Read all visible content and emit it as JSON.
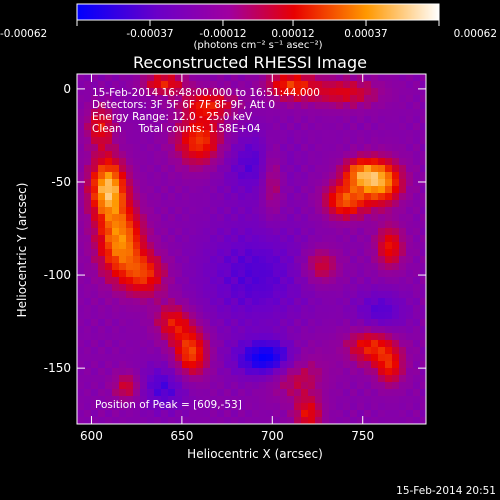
{
  "title": "Reconstructed RHESSI Image",
  "timestamp": "15-Feb-2014 20:51",
  "colorbar": {
    "ticks": [
      "-0.00062",
      "-0.00037",
      "-0.00012",
      "0.00012",
      "0.00037",
      "0.00062"
    ],
    "tick_values": [
      -0.00062,
      -0.00037,
      -0.00012,
      0.00012,
      0.00037,
      0.00062
    ],
    "range": [
      -0.00062,
      0.00062
    ],
    "unit_label": "(photons cm⁻² s⁻¹ asec⁻²)",
    "colors": [
      "#0000ff",
      "#6a00c8",
      "#a000a0",
      "#e80000",
      "#ff9800",
      "#ffffff"
    ]
  },
  "annotations": {
    "time_range": "15-Feb-2014 16:48:00.000 to 16:51:44.000",
    "detectors": "Detectors: 3F 5F 6F 7F 8F 9F, Att 0",
    "energy": "Energy Range: 12.0 - 25.0 keV",
    "clean": "Clean     Total counts: 1.58E+04",
    "peak": "Position of Peak = [609,-53]"
  },
  "chart_data": {
    "type": "heatmap",
    "title": "Reconstructed RHESSI Image",
    "xlabel": "Heliocentric X (arcsec)",
    "ylabel": "Heliocentric Y (arcsec)",
    "xlim": [
      592,
      785
    ],
    "ylim": [
      -180,
      8
    ],
    "x_ticks": [
      600,
      650,
      700,
      750
    ],
    "y_ticks": [
      0,
      -50,
      -100,
      -150
    ],
    "x_tick_labels": [
      "600",
      "650",
      "700",
      "750"
    ],
    "y_tick_labels": [
      "0",
      "-50",
      "-100",
      "-150"
    ],
    "peak": [
      609,
      -53
    ],
    "grid": false,
    "blobs": [
      {
        "x": 609,
        "y": -53,
        "sx": 10,
        "sy": 16,
        "v": 1.0
      },
      {
        "x": 616,
        "y": -82,
        "sx": 13,
        "sy": 20,
        "v": 0.85
      },
      {
        "x": 630,
        "y": -100,
        "sx": 12,
        "sy": 12,
        "v": 0.55
      },
      {
        "x": 605,
        "y": -20,
        "sx": 8,
        "sy": 12,
        "v": 0.5
      },
      {
        "x": 660,
        "y": -28,
        "sx": 14,
        "sy": 14,
        "v": 0.65
      },
      {
        "x": 665,
        "y": -8,
        "sx": 16,
        "sy": 8,
        "v": 0.5
      },
      {
        "x": 640,
        "y": 3,
        "sx": 12,
        "sy": 6,
        "v": 0.55
      },
      {
        "x": 710,
        "y": 2,
        "sx": 14,
        "sy": 8,
        "v": 0.6
      },
      {
        "x": 740,
        "y": -2,
        "sx": 20,
        "sy": 8,
        "v": 0.45
      },
      {
        "x": 700,
        "y": -48,
        "sx": 6,
        "sy": 20,
        "v": 0.45
      },
      {
        "x": 760,
        "y": -50,
        "sx": 12,
        "sy": 12,
        "v": 0.9
      },
      {
        "x": 740,
        "y": -60,
        "sx": 12,
        "sy": 10,
        "v": 0.7
      },
      {
        "x": 748,
        "y": -45,
        "sx": 10,
        "sy": 8,
        "v": 0.6
      },
      {
        "x": 765,
        "y": -85,
        "sx": 8,
        "sy": 12,
        "v": 0.55
      },
      {
        "x": 727,
        "y": -95,
        "sx": 10,
        "sy": 10,
        "v": 0.45
      },
      {
        "x": 655,
        "y": -142,
        "sx": 10,
        "sy": 14,
        "v": 0.7
      },
      {
        "x": 645,
        "y": -125,
        "sx": 10,
        "sy": 10,
        "v": 0.5
      },
      {
        "x": 712,
        "y": -150,
        "sx": 16,
        "sy": 14,
        "v": 0.55
      },
      {
        "x": 720,
        "y": -175,
        "sx": 8,
        "sy": 10,
        "v": 0.5
      },
      {
        "x": 755,
        "y": -138,
        "sx": 14,
        "sy": 10,
        "v": 0.6
      },
      {
        "x": 765,
        "y": -150,
        "sx": 8,
        "sy": 10,
        "v": 0.5
      },
      {
        "x": 620,
        "y": -160,
        "sx": 8,
        "sy": 8,
        "v": 0.45
      },
      {
        "x": 700,
        "y": -145,
        "sx": 18,
        "sy": 10,
        "v": -0.85
      },
      {
        "x": 690,
        "y": -100,
        "sx": 30,
        "sy": 30,
        "v": -0.35
      },
      {
        "x": 690,
        "y": -40,
        "sx": 18,
        "sy": 18,
        "v": -0.35
      },
      {
        "x": 640,
        "y": -160,
        "sx": 14,
        "sy": 12,
        "v": -0.4
      },
      {
        "x": 760,
        "y": -120,
        "sx": 14,
        "sy": 12,
        "v": -0.35
      }
    ]
  }
}
